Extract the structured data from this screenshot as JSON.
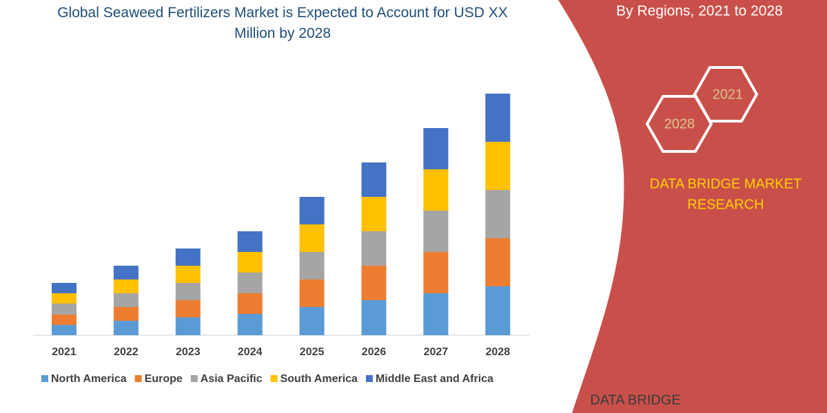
{
  "chart_data": {
    "type": "stacked_bar",
    "title": "Global Seaweed Fertilizers Market is Expected to Account for USD XX Million by 2028",
    "categories": [
      "2021",
      "2022",
      "2023",
      "2024",
      "2025",
      "2026",
      "2027",
      "2028"
    ],
    "series": [
      {
        "name": "North America",
        "color": "#5b9bd5",
        "values": [
          15,
          21,
          26,
          31,
          41,
          51,
          61,
          71
        ]
      },
      {
        "name": "Europe",
        "color": "#ed7d31",
        "values": [
          15,
          20,
          25,
          30,
          40,
          50,
          60,
          70
        ]
      },
      {
        "name": "Asia Pacific",
        "color": "#a5a5a5",
        "values": [
          16,
          20,
          25,
          30,
          40,
          50,
          60,
          70
        ]
      },
      {
        "name": "South America",
        "color": "#ffc000",
        "values": [
          15,
          20,
          25,
          30,
          40,
          50,
          60,
          70
        ]
      },
      {
        "name": "Middle East and Africa",
        "color": "#4472c4",
        "values": [
          15,
          20,
          25,
          30,
          40,
          50,
          60,
          70
        ]
      }
    ]
  },
  "side_panel": {
    "heading": "By Regions, 2021 to 2028",
    "hexagons": [
      "2021",
      "2028"
    ],
    "brand_lines": [
      "DATA BRIDGE MARKET",
      "RESEARCH"
    ],
    "logo_text": "DATA BRIDGE"
  }
}
